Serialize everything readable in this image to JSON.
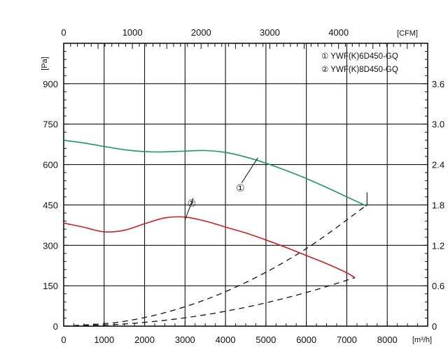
{
  "chart_data": {
    "type": "line",
    "x_bottom": {
      "unit": "[m³/h]",
      "range": [
        0,
        9000
      ],
      "ticks": [
        0,
        1000,
        2000,
        3000,
        4000,
        5000,
        6000,
        7000,
        8000
      ],
      "tick_labels": [
        "0",
        "1000",
        "2000",
        "3000",
        "4000",
        "5000",
        "6000",
        "7000",
        "8000"
      ]
    },
    "x_top": {
      "unit": "[CFM]",
      "ticks": [
        0,
        1000,
        2000,
        3000,
        4000
      ],
      "tick_labels": [
        "0",
        "1000",
        "2000",
        "3000",
        "4000"
      ]
    },
    "y_left": {
      "unit": "[Pa]",
      "range": [
        0,
        1050
      ],
      "ticks": [
        0,
        150,
        300,
        450,
        600,
        750,
        900
      ],
      "tick_labels": [
        "0",
        "150",
        "300",
        "450",
        "600",
        "750",
        "900"
      ]
    },
    "y_right": {
      "ticks": [
        0,
        0.6,
        1.2,
        1.8,
        2.4,
        3.0,
        3.6
      ],
      "tick_labels": [
        "0",
        "0.6",
        "1.2",
        "1.8",
        "2.4",
        "3.0",
        "3.6"
      ]
    },
    "grid": true,
    "legend_position": "top-right",
    "series": [
      {
        "name": "YWF(K)6D450-GQ",
        "marker": "①",
        "color": "#1f9a5e",
        "x": [
          0,
          500,
          1000,
          1500,
          2000,
          2500,
          3000,
          3500,
          4000,
          4500,
          5000,
          5500,
          6000,
          6500,
          7000,
          7500
        ],
        "y": [
          690,
          680,
          667,
          655,
          648,
          647,
          650,
          652,
          645,
          628,
          605,
          578,
          548,
          515,
          480,
          445
        ]
      },
      {
        "name": "YWF(K)8D450-GQ",
        "marker": "②",
        "color": "#cc1f1f",
        "x": [
          0,
          500,
          1000,
          1500,
          2000,
          2500,
          3000,
          3500,
          4000,
          4500,
          5000,
          5500,
          6000,
          6500,
          7000,
          7200
        ],
        "y": [
          383,
          367,
          350,
          356,
          380,
          402,
          405,
          390,
          368,
          346,
          320,
          292,
          262,
          232,
          198,
          180
        ]
      }
    ],
    "system_curves": [
      {
        "x": [
          0,
          1500,
          3000,
          4500,
          6000,
          7500
        ],
        "y": [
          0,
          18,
          72,
          162,
          288,
          450
        ]
      },
      {
        "x": [
          0,
          1500,
          3000,
          4500,
          6000,
          7200
        ],
        "y": [
          0,
          8,
          31,
          70,
          125,
          180
        ]
      }
    ],
    "point_verticals": [
      {
        "x": 7000,
        "y": 150
      },
      {
        "x": 7500,
        "y": 450
      }
    ],
    "callout_lines": [
      {
        "from_x": 4400,
        "from_y": 532,
        "to_x": 4800,
        "to_y": 625
      },
      {
        "from_x": 3200,
        "from_y": 475,
        "to_x": 3000,
        "to_y": 395
      }
    ]
  }
}
